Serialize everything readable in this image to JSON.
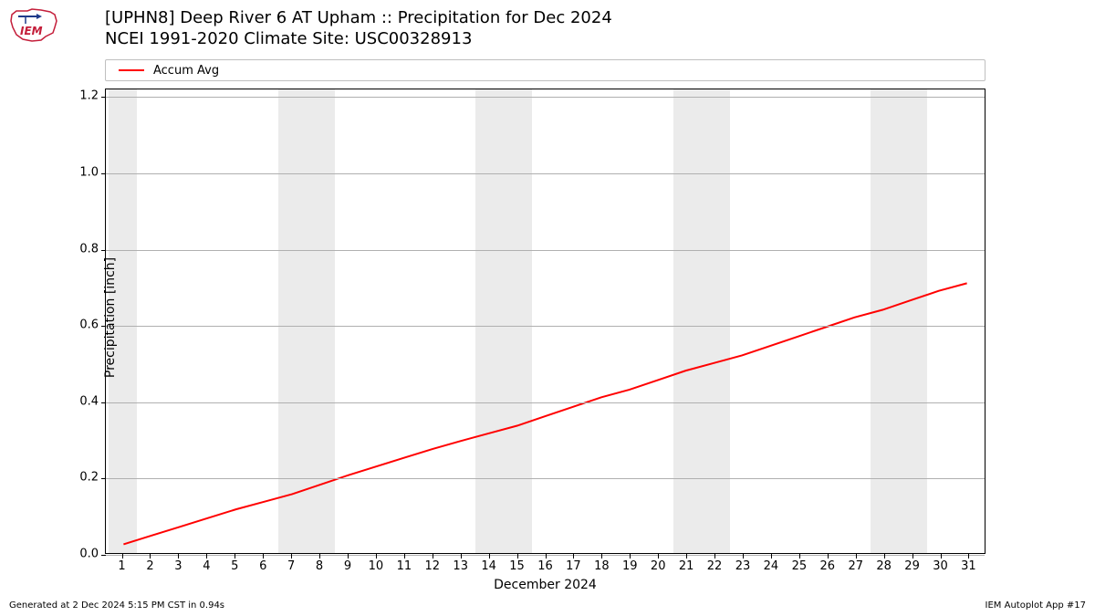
{
  "logo": {
    "text": "IEM",
    "outline_color": "#c41e3a",
    "arrow_color": "#1e3a8a"
  },
  "title": {
    "line1": "[UPHN8] Deep River 6 AT Upham :: Precipitation for Dec 2024",
    "line2": "NCEI 1991-2020 Climate Site: USC00328913",
    "fontsize": 18
  },
  "chart": {
    "type": "line",
    "x_days": [
      1,
      2,
      3,
      4,
      5,
      6,
      7,
      8,
      9,
      10,
      11,
      12,
      13,
      14,
      15,
      16,
      17,
      18,
      19,
      20,
      21,
      22,
      23,
      24,
      25,
      26,
      27,
      28,
      29,
      30,
      31
    ],
    "y_values": [
      0.023,
      0.046,
      0.069,
      0.092,
      0.115,
      0.135,
      0.155,
      0.18,
      0.205,
      0.228,
      0.251,
      0.274,
      0.295,
      0.315,
      0.335,
      0.36,
      0.385,
      0.41,
      0.43,
      0.455,
      0.48,
      0.5,
      0.52,
      0.545,
      0.57,
      0.595,
      0.62,
      0.64,
      0.665,
      0.69,
      0.71
    ],
    "line_color": "#ff0000",
    "line_width": 2,
    "legend_label": "Accum Avg",
    "xlim": [
      0.4,
      31.6
    ],
    "ylim": [
      0,
      1.22
    ],
    "yticks": [
      0.0,
      0.2,
      0.4,
      0.6,
      0.8,
      1.0,
      1.2
    ],
    "xticks": [
      1,
      2,
      3,
      4,
      5,
      6,
      7,
      8,
      9,
      10,
      11,
      12,
      13,
      14,
      15,
      16,
      17,
      18,
      19,
      20,
      21,
      22,
      23,
      24,
      25,
      26,
      27,
      28,
      29,
      30,
      31
    ],
    "weekend_bands": [
      [
        0.5,
        1.5
      ],
      [
        6.5,
        8.5
      ],
      [
        13.5,
        15.5
      ],
      [
        20.5,
        22.5
      ],
      [
        27.5,
        29.5
      ]
    ],
    "band_color": "#ebebeb",
    "grid_color": "#b0b0b0",
    "background_color": "#ffffff",
    "ylabel": "Precipitation [inch]",
    "xlabel": "December 2024",
    "label_fontsize": 14,
    "tick_fontsize": 13
  },
  "footer": {
    "left": "Generated at 2 Dec 2024 5:15 PM CST in 0.94s",
    "right": "IEM Autoplot App #17",
    "fontsize": 10
  }
}
